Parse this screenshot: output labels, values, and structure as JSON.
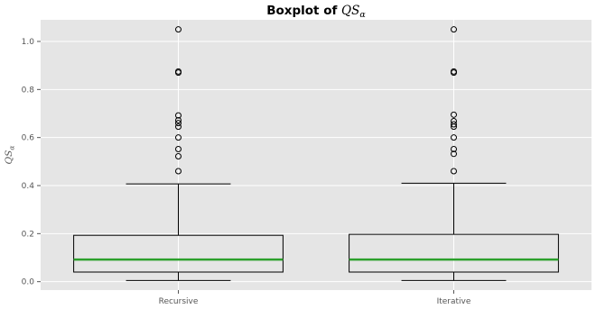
{
  "chart_data": {
    "type": "box",
    "title": {
      "text": "Boxplot of ",
      "symbol": "QS",
      "subscript": "α"
    },
    "xlabel": "",
    "ylabel": {
      "symbol": "QS",
      "subscript": "α"
    },
    "ylim": [
      -0.035,
      1.09
    ],
    "yticks": [
      0.0,
      0.2,
      0.4,
      0.6,
      0.8,
      1.0
    ],
    "ytick_labels": [
      "0.0",
      "0.2",
      "0.4",
      "0.6",
      "0.8",
      "1.0"
    ],
    "grid": true,
    "categories": [
      "Recursive",
      "Iterative"
    ],
    "boxes": [
      {
        "label": "Recursive",
        "whisker_low": 0.005,
        "q1": 0.04,
        "median": 0.092,
        "q3": 0.193,
        "whisker_high": 0.407,
        "outliers": [
          0.46,
          0.522,
          0.552,
          0.6,
          0.645,
          0.66,
          0.672,
          0.692,
          0.87,
          0.875,
          1.05
        ]
      },
      {
        "label": "Iterative",
        "whisker_low": 0.005,
        "q1": 0.04,
        "median": 0.092,
        "q3": 0.197,
        "whisker_high": 0.41,
        "outliers": [
          0.46,
          0.532,
          0.552,
          0.6,
          0.645,
          0.655,
          0.668,
          0.695,
          0.87,
          0.875,
          1.05
        ]
      }
    ],
    "colors": {
      "plot_background": "#e5e5e5",
      "grid": "#ffffff",
      "box": "#000000",
      "median": "#2ca02c"
    }
  }
}
